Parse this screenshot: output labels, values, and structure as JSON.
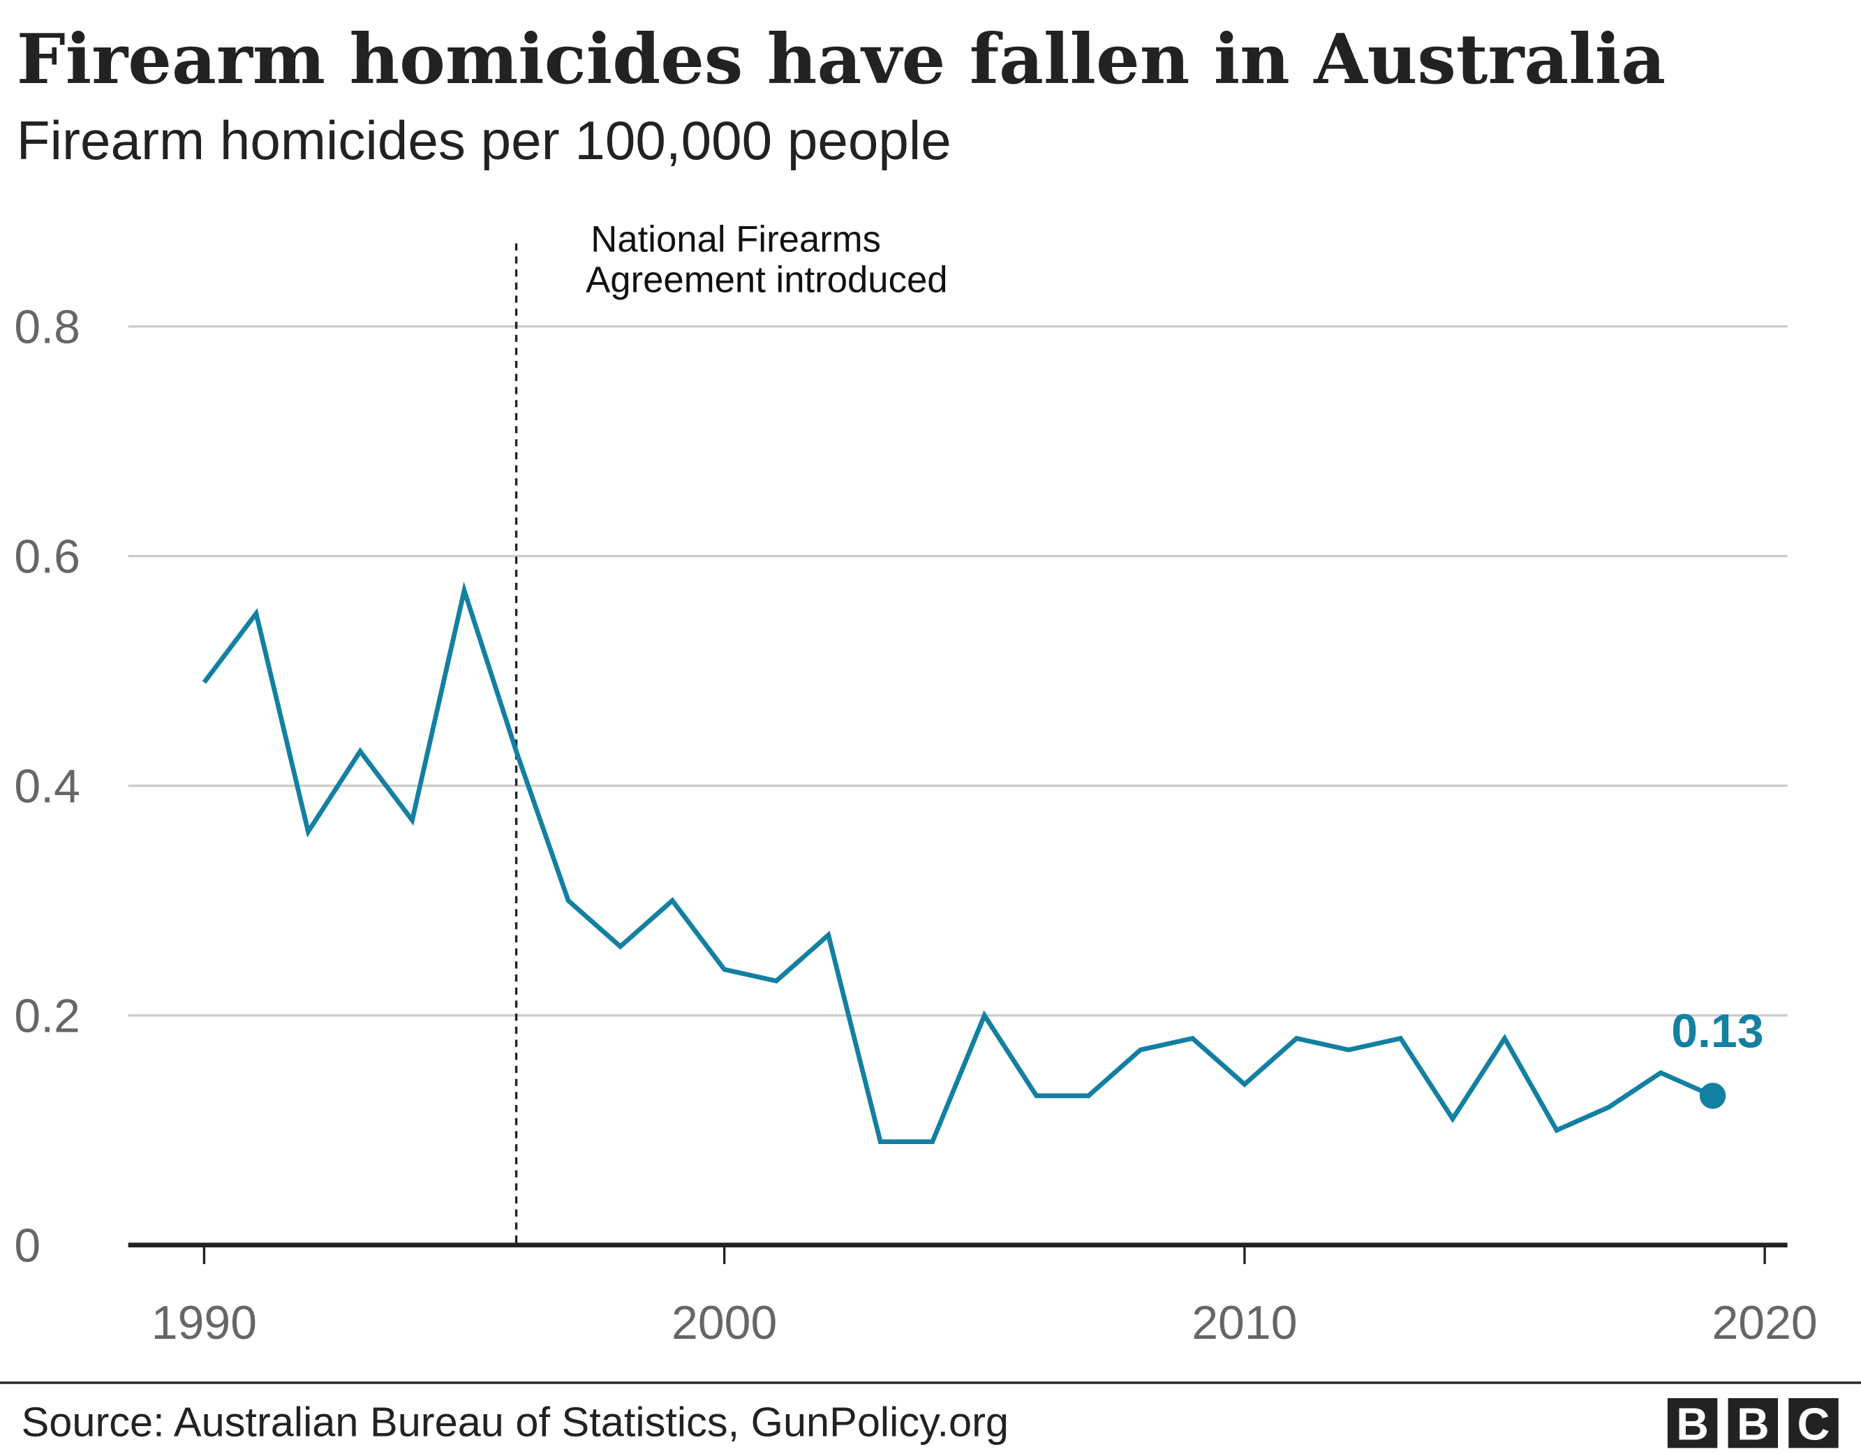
{
  "title": "Firearm homicides have fallen in Australia",
  "subtitle": "Firearm homicides per 100,000 people",
  "source": "Source: Australian Bureau of Statistics, GunPolicy.org",
  "logo": "BBC",
  "colors": {
    "line": "#1380a1",
    "grid": "#cccccc",
    "axis": "#222222",
    "tick_text": "#666666"
  },
  "chart_data": {
    "type": "line",
    "title": "Firearm homicides have fallen in Australia",
    "subtitle": "Firearm homicides per 100,000 people",
    "xlabel": "",
    "ylabel": "",
    "xlim": [
      1988.5,
      2020.5
    ],
    "ylim": [
      0,
      0.8
    ],
    "x_ticks": [
      1990,
      2000,
      2010,
      2020
    ],
    "x_tick_labels": [
      "1990",
      "2000",
      "2010",
      "2020"
    ],
    "y_ticks": [
      0,
      0.2,
      0.4,
      0.6,
      0.8
    ],
    "y_tick_labels": [
      "0",
      "0.2",
      "0.4",
      "0.6",
      "0.8"
    ],
    "grid": "horizontal",
    "legend": "none",
    "x": [
      1990,
      1991,
      1992,
      1993,
      1994,
      1995,
      1996,
      1997,
      1998,
      1999,
      2000,
      2001,
      2002,
      2003,
      2004,
      2005,
      2006,
      2007,
      2008,
      2009,
      2010,
      2011,
      2012,
      2013,
      2014,
      2015,
      2016,
      2017,
      2018,
      2019
    ],
    "series": [
      {
        "values": [
          0.49,
          0.55,
          0.36,
          0.43,
          0.37,
          0.57,
          0.43,
          0.3,
          0.26,
          0.3,
          0.24,
          0.23,
          0.27,
          0.09,
          0.09,
          0.2,
          0.13,
          0.13,
          0.17,
          0.18,
          0.14,
          0.18,
          0.17,
          0.18,
          0.11,
          0.18,
          0.1,
          0.12,
          0.15,
          0.13
        ]
      }
    ],
    "end_label": "0.13",
    "annotation": {
      "x": 1996,
      "lines": [
        "National Firearms",
        "Agreement introduced"
      ]
    }
  }
}
